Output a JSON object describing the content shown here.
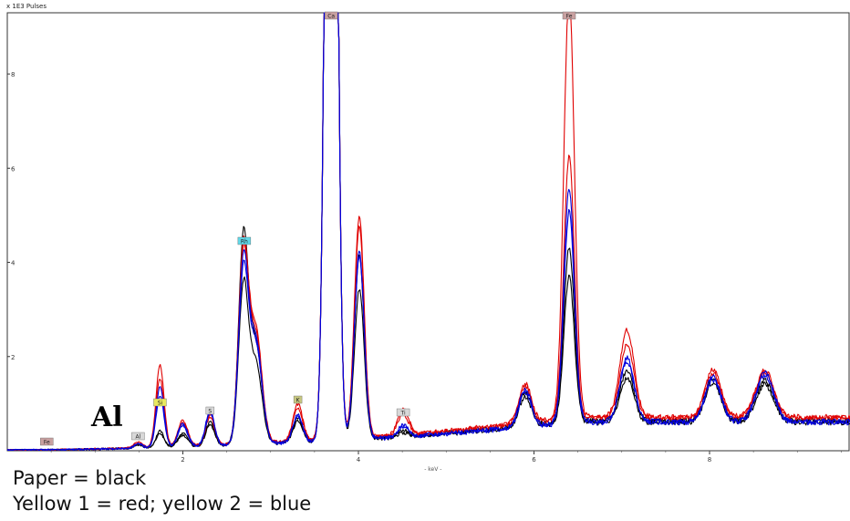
{
  "chart_data": {
    "type": "line",
    "title": "",
    "ylabel": "x 1E3 Pulses",
    "xlabel": "- keV -",
    "xlim": [
      0.0,
      9.6
    ],
    "ylim": [
      0,
      9.3
    ],
    "x_ticks": [
      "2",
      "4",
      "6",
      "8"
    ],
    "y_ticks": [
      "2",
      "4",
      "6",
      "8"
    ],
    "grid": false,
    "peak_labels": [
      {
        "text": "Fe",
        "x": 0.45,
        "color": "#c8a0a0"
      },
      {
        "text": "Al",
        "x": 1.49,
        "color": "#d8d8d8"
      },
      {
        "text": "Si",
        "x": 1.74,
        "color": "#e8e860"
      },
      {
        "text": "S",
        "x": 2.31,
        "color": "#d8d8d8"
      },
      {
        "text": "Rh",
        "x": 2.7,
        "color": "#60d8e8"
      },
      {
        "text": "K",
        "x": 3.31,
        "color": "#c8c880"
      },
      {
        "text": "Ca",
        "x": 3.69,
        "color": "#c8a0a0"
      },
      {
        "text": "Ti",
        "x": 4.51,
        "color": "#d8d8d8"
      },
      {
        "text": "Fe",
        "x": 6.4,
        "color": "#c8a0a0"
      }
    ],
    "series": [
      {
        "color": "#000000",
        "baseline_end": 0.62,
        "peaks": {
          "Al": 0.08,
          "Si": 0.35,
          "P": 0.28,
          "S": 0.5,
          "Rh": 4.3,
          "Rh2": 2.1,
          "K": 0.5,
          "Ca": 30,
          "CaKb": 3.9,
          "Ti": 0.12,
          "Mn": 0.7,
          "Fe": 3.7,
          "FeKb": 1.05,
          "Cu": 0.9,
          "Zn": 0.85
        }
      },
      {
        "color": "#000000",
        "baseline_end": 0.58,
        "peaks": {
          "Al": 0.07,
          "Si": 0.3,
          "P": 0.25,
          "S": 0.45,
          "Rh": 3.3,
          "Rh2": 1.7,
          "K": 0.45,
          "Ca": 30,
          "CaKb": 3.2,
          "Ti": 0.1,
          "Mn": 0.65,
          "Fe": 3.1,
          "FeKb": 0.95,
          "Cu": 0.85,
          "Zn": 0.8
        }
      },
      {
        "color": "#e00000",
        "baseline_end": 0.7,
        "peaks": {
          "Al": 0.12,
          "Si": 1.75,
          "P": 0.55,
          "S": 0.65,
          "Rh": 4.05,
          "Rh2": 2.4,
          "K": 0.78,
          "Ca": 30,
          "CaKb": 4.7,
          "Ti": 0.55,
          "Mn": 0.82,
          "Fe": 9.05,
          "FeKb": 1.85,
          "Cu": 1.0,
          "Zn": 1.0
        }
      },
      {
        "color": "#e00000",
        "baseline_end": 0.68,
        "peaks": {
          "Al": 0.1,
          "Si": 1.45,
          "P": 0.5,
          "S": 0.6,
          "Rh": 3.9,
          "Rh2": 2.3,
          "K": 0.7,
          "Ca": 30,
          "CaKb": 4.5,
          "Ti": 0.45,
          "Mn": 0.8,
          "Fe": 5.6,
          "FeKb": 1.55,
          "Cu": 0.95,
          "Zn": 0.95
        }
      },
      {
        "color": "#0000dd",
        "baseline_end": 0.6,
        "peaks": {
          "Al": 0.1,
          "Si": 1.3,
          "P": 0.5,
          "S": 0.75,
          "Rh": 3.8,
          "Rh2": 2.2,
          "K": 0.6,
          "Ca": 30,
          "CaKb": 4.0,
          "Ti": 0.25,
          "Mn": 0.78,
          "Fe": 4.95,
          "FeKb": 1.35,
          "Cu": 0.95,
          "Zn": 1.05
        }
      },
      {
        "color": "#0000dd",
        "baseline_end": 0.58,
        "peaks": {
          "Al": 0.09,
          "Si": 1.1,
          "P": 0.45,
          "S": 0.7,
          "Rh": 3.6,
          "Rh2": 2.1,
          "K": 0.55,
          "Ca": 30,
          "CaKb": 3.9,
          "Ti": 0.22,
          "Mn": 0.75,
          "Fe": 4.5,
          "FeKb": 1.3,
          "Cu": 0.9,
          "Zn": 1.0
        }
      }
    ]
  },
  "annotation": {
    "text": "Al"
  },
  "caption": {
    "line1": "Paper = black",
    "line2": "Yellow 1 = red; yellow 2 = blue"
  }
}
